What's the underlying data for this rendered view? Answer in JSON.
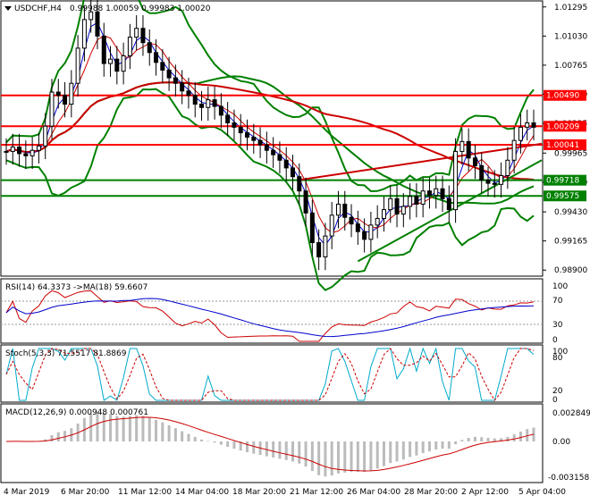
{
  "header": {
    "symbol": "USDCHF,H4",
    "ohlc": "0.99988 1.00059 0.99983 1.00020"
  },
  "main_axis": {
    "ticks": [
      "1.01295",
      "1.01030",
      "1.00765",
      "1.00500",
      "1.00235",
      "0.99965",
      "0.99700",
      "0.99430",
      "0.99165",
      "0.98900"
    ],
    "ymin": 0.98845,
    "ymax": 1.0135
  },
  "levels": [
    {
      "label": "1.00490",
      "value": 1.0049,
      "color": "#ff0000"
    },
    {
      "label": "1.00209",
      "value": 1.00209,
      "color": "#ff0000"
    },
    {
      "label": "1.00041",
      "value": 1.00041,
      "color": "#ff0000"
    },
    {
      "label": "0.99718",
      "value": 0.99718,
      "color": "#008000"
    },
    {
      "label": "0.99575",
      "value": 0.99575,
      "color": "#008000"
    }
  ],
  "rsi": {
    "label": "RSI(14) 64.3373  ->MA(18) 59.6607",
    "ticks": [
      "100",
      "70",
      "30",
      "0"
    ]
  },
  "stoch": {
    "label": "Stoch(5,3,3) 71.5517 81.8869",
    "ticks": [
      "100",
      "80",
      "20",
      "0"
    ]
  },
  "macd": {
    "label": "MACD(12,26,9) 0.000948 0.000761",
    "ticks": [
      "0.002849",
      "0.00",
      "-0.003158"
    ]
  },
  "x_axis": {
    "labels": [
      "4 Mar 2019",
      "6 Mar 20:00",
      "11 Mar 12:00",
      "14 Mar 04:00",
      "18 Mar 20:00",
      "21 Mar 12:00",
      "26 Mar 04:00",
      "28 Mar 20:00",
      "2 Apr 12:00",
      "5 Apr 04:00"
    ]
  },
  "chart_data": {
    "type": "candlestick",
    "symbol": "USDCHF",
    "timeframe": "H4",
    "close": [
      0.9998,
      1.0002,
      0.9996,
      0.9994,
      0.9999,
      1.0003,
      1.0021,
      1.0052,
      1.0049,
      1.0041,
      1.006,
      1.0092,
      1.0118,
      1.0125,
      1.0103,
      1.0078,
      1.0082,
      1.0071,
      1.0085,
      1.0102,
      1.011,
      1.0097,
      1.0088,
      1.0079,
      1.0072,
      1.0065,
      1.006,
      1.0053,
      1.0049,
      1.0041,
      1.0038,
      1.0045,
      1.0039,
      1.0031,
      1.0024,
      1.002,
      1.0015,
      1.0011,
      1.0008,
      1.0004,
      0.9999,
      0.9995,
      0.999,
      0.9983,
      0.9975,
      0.9962,
      0.9942,
      0.9915,
      0.9902,
      0.9921,
      0.994,
      0.995,
      0.9938,
      0.9932,
      0.9925,
      0.9918,
      0.9931,
      0.9937,
      0.9945,
      0.9955,
      0.9941,
      0.9948,
      0.9957,
      0.995,
      0.9962,
      0.9958,
      0.9964,
      0.9955,
      0.9945,
      0.9998,
      1.0007,
      0.9992,
      0.9985,
      0.9972,
      0.9969,
      0.9968,
      0.9976,
      0.999,
      1.0008,
      1.002,
      1.0024,
      1.002
    ],
    "levels": [
      1.0049,
      1.00209,
      1.00041,
      0.99718,
      0.99575
    ],
    "indicators": {
      "rsi": [
        64.3373,
        59.6607
      ],
      "stoch": [
        71.5517,
        81.8869
      ],
      "macd": [
        0.000948,
        0.000761
      ]
    },
    "colors": {
      "up": "#000000",
      "down": "#000000",
      "ma_red": "#cc0000",
      "bands": "#008000",
      "ma_blue": "#0000cc"
    }
  }
}
